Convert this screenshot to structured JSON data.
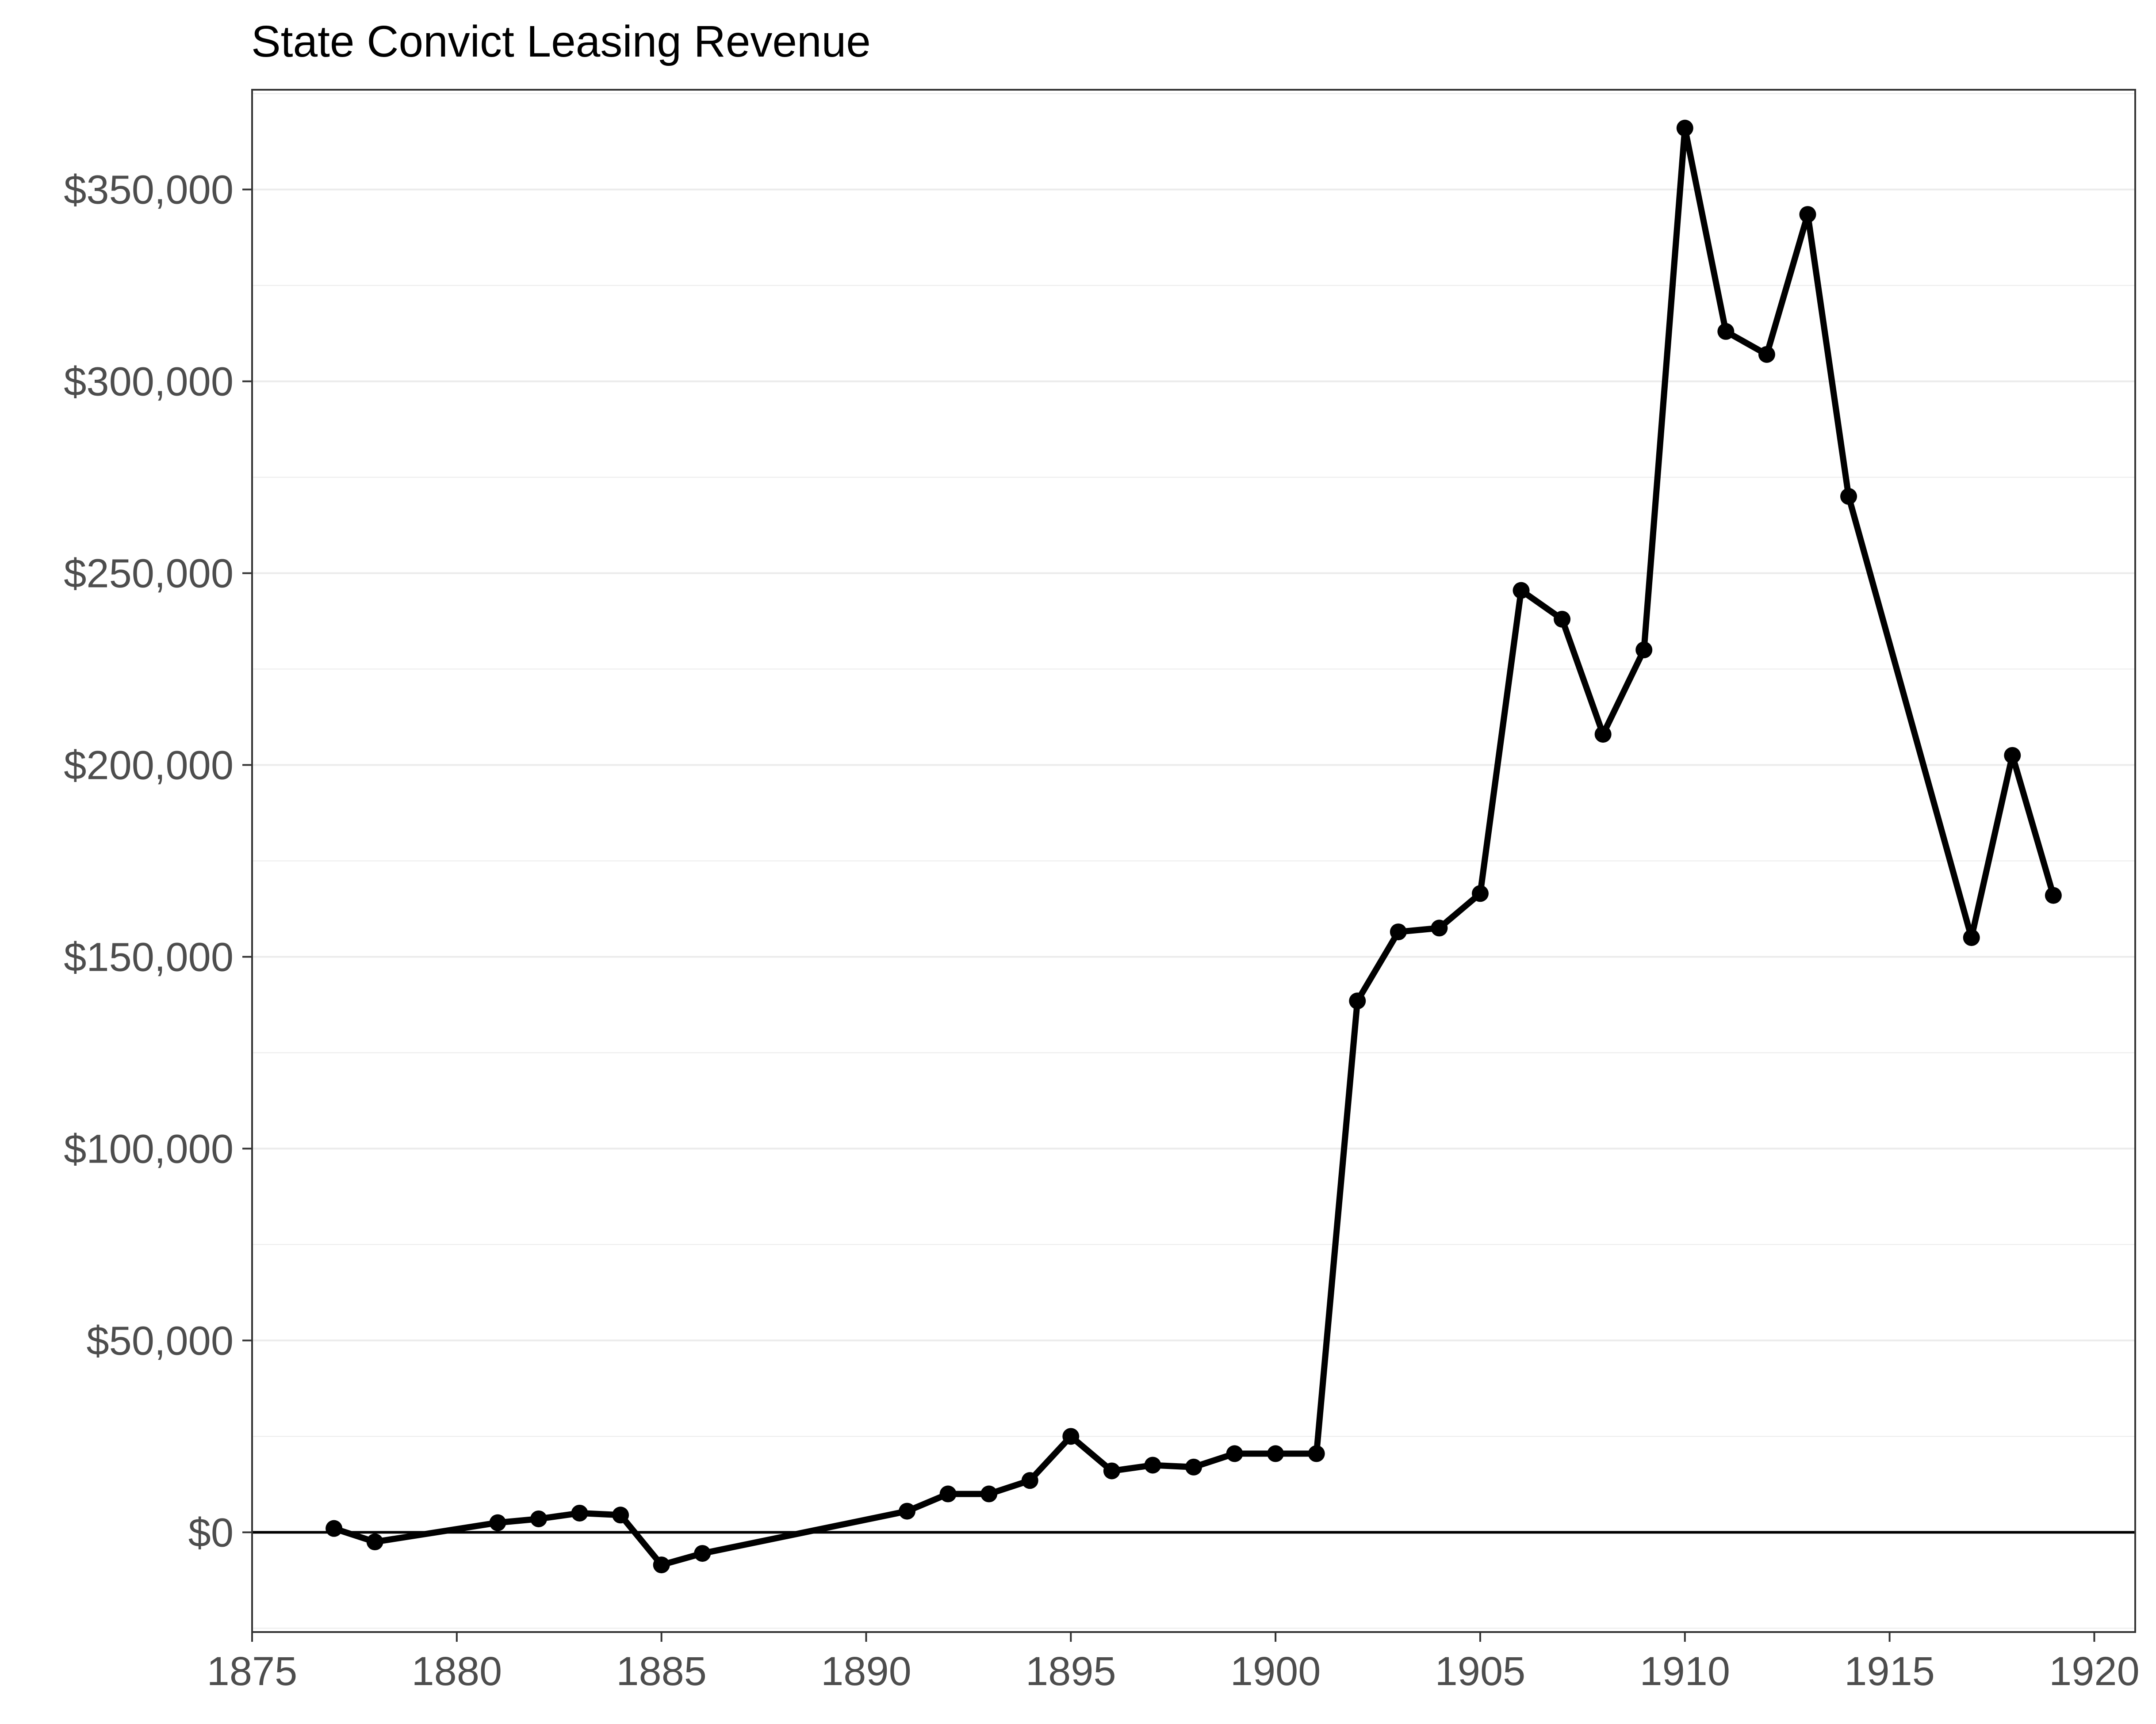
{
  "chart_data": {
    "type": "line",
    "title": "State Convict Leasing Revenue",
    "xlabel": "",
    "ylabel": "",
    "xlim": [
      1875,
      1921
    ],
    "ylim": [
      -26000,
      376000
    ],
    "x_ticks": [
      1875,
      1880,
      1885,
      1890,
      1895,
      1900,
      1905,
      1910,
      1915,
      1920
    ],
    "x_tick_labels": [
      "1875",
      "1880",
      "1885",
      "1890",
      "1895",
      "1900",
      "1905",
      "1910",
      "1915",
      "1920"
    ],
    "y_ticks": [
      0,
      50000,
      100000,
      150000,
      200000,
      250000,
      300000,
      350000
    ],
    "y_tick_labels": [
      "$0",
      "$50,000",
      "$100,000",
      "$150,000",
      "$200,000",
      "$250,000",
      "$300,000",
      "$350,000"
    ],
    "grid": true,
    "zero_line": true,
    "colors": {
      "line": "#000000",
      "grid": "#ebebeb",
      "panel_border": "#333333"
    },
    "series": [
      {
        "x": [
          1877,
          1878,
          1881,
          1882,
          1883,
          1884,
          1885,
          1886,
          1891,
          1892,
          1893,
          1894,
          1895,
          1896,
          1897,
          1898,
          1899,
          1900,
          1901,
          1902,
          1903,
          1904,
          1905,
          1906,
          1907,
          1908,
          1909,
          1910,
          1911,
          1912,
          1913,
          1914,
          1917,
          1918,
          1919
        ],
        "values": [
          1000,
          -2500,
          2500,
          3500,
          5000,
          4500,
          -8500,
          -5500,
          5500,
          10000,
          10000,
          13500,
          25000,
          16000,
          17500,
          17000,
          20500,
          20500,
          20500,
          138500,
          156500,
          157500,
          166500,
          245500,
          238000,
          208000,
          230000,
          366000,
          313000,
          307000,
          343500,
          270000,
          155000,
          202500,
          166000
        ]
      }
    ]
  }
}
